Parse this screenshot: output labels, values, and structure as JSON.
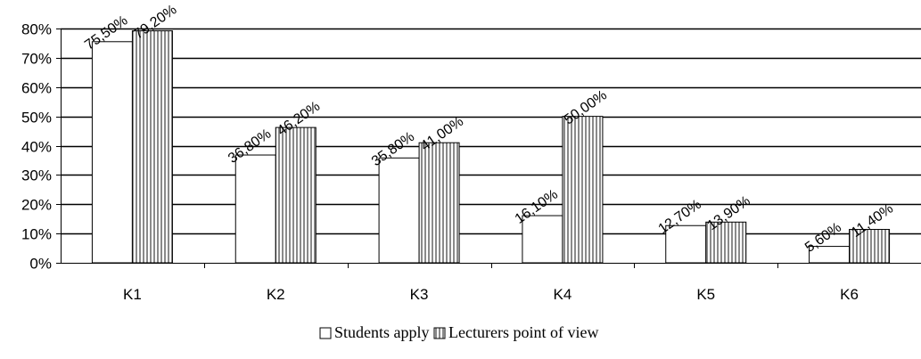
{
  "chart_data": {
    "type": "bar",
    "categories": [
      "K1",
      "K2",
      "K3",
      "K4",
      "K5",
      "K6"
    ],
    "series": [
      {
        "name": "Students apply",
        "values": [
          75.5,
          36.8,
          35.8,
          16.1,
          12.7,
          5.6
        ],
        "labels": [
          "75,50%",
          "36,80%",
          "35,80%",
          "16,10%",
          "12,70%",
          "5,60%"
        ],
        "fill": "#ffffff"
      },
      {
        "name": "Lecturers point of view",
        "values": [
          79.2,
          46.2,
          41.0,
          50.0,
          13.9,
          11.4
        ],
        "labels": [
          "79,20%",
          "46,20%",
          "41,00%",
          "50,00%",
          "13,90%",
          "11,40%"
        ],
        "fill": "vertical-stripes"
      }
    ],
    "ylim": [
      0,
      80
    ],
    "yticks": [
      "0%",
      "10%",
      "20%",
      "30%",
      "40%",
      "50%",
      "60%",
      "70%",
      "80%"
    ],
    "grid": true,
    "legend_position": "bottom",
    "title": "",
    "xlabel": "",
    "ylabel": ""
  }
}
